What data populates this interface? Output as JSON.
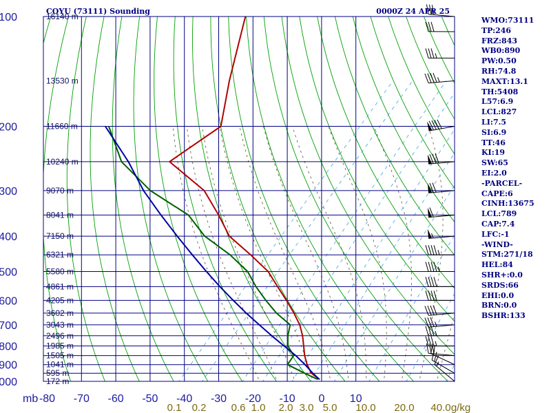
{
  "header": {
    "title": "COYU (73111) Sounding",
    "valid_time": "0000Z 24 APR 25"
  },
  "chart_data": {
    "type": "line",
    "title": "COYU (73111) Sounding",
    "xlabel": "",
    "ylabel": "mb",
    "x_unit_label": "mb",
    "pressure_axis_labels": [
      "100",
      "200",
      "300",
      "400",
      "500",
      "600",
      "700",
      "800",
      "900",
      "1000"
    ],
    "pressure_levels": [
      100,
      200,
      250,
      300,
      350,
      400,
      450,
      500,
      550,
      600,
      650,
      700,
      750,
      800,
      850,
      900,
      950,
      1000
    ],
    "temperature_ticks": [
      "-80",
      "-70",
      "-60",
      "-50",
      "-40",
      "-30",
      "-20",
      "-10",
      "0",
      "10"
    ],
    "mixing_ratio_labels": [
      "0.1",
      "0.2",
      "0.6",
      "1.0",
      "2.0",
      "3.0",
      "5.0",
      "10.0",
      "20.0",
      "40.0",
      "g/kg"
    ],
    "height_labels": [
      {
        "p": 100,
        "label": "16140 m"
      },
      {
        "p": 150,
        "label": "13530 m"
      },
      {
        "p": 200,
        "label": "11660 m"
      },
      {
        "p": 250,
        "label": "10240 m"
      },
      {
        "p": 300,
        "label": "9070 m"
      },
      {
        "p": 350,
        "label": "8041 m"
      },
      {
        "p": 400,
        "label": "7150 m"
      },
      {
        "p": 450,
        "label": "6321 m"
      },
      {
        "p": 500,
        "label": "5580 m"
      },
      {
        "p": 550,
        "label": "4861 m"
      },
      {
        "p": 600,
        "label": "4205 m"
      },
      {
        "p": 650,
        "label": "3602 m"
      },
      {
        "p": 700,
        "label": "3043 m"
      },
      {
        "p": 750,
        "label": "2496 m"
      },
      {
        "p": 800,
        "label": "1985 m"
      },
      {
        "p": 850,
        "label": "1505 m"
      },
      {
        "p": 900,
        "label": "1041 m"
      },
      {
        "p": 950,
        "label": "595 m"
      },
      {
        "p": 1000,
        "label": "172 m"
      }
    ],
    "series": [
      {
        "key": "temperature",
        "color": "#b00000",
        "points": [
          [
            988,
            -1.1
          ],
          [
            950,
            -5.1
          ],
          [
            900,
            -8.6
          ],
          [
            850,
            -11.7
          ],
          [
            800,
            -14.5
          ],
          [
            750,
            -17.5
          ],
          [
            700,
            -21.2
          ],
          [
            650,
            -26.0
          ],
          [
            600,
            -31.5
          ],
          [
            550,
            -37.7
          ],
          [
            500,
            -44.4
          ],
          [
            450,
            -53.9
          ],
          [
            400,
            -65.0
          ],
          [
            350,
            -73.7
          ],
          [
            300,
            -84.3
          ],
          [
            250,
            -102.0
          ],
          [
            200,
            -96.3
          ],
          [
            150,
            -105.8
          ],
          [
            100,
            -118.0
          ]
        ]
      },
      {
        "key": "dewpoint",
        "color": "#006000",
        "points": [
          [
            988,
            -1.6
          ],
          [
            950,
            -7.1
          ],
          [
            900,
            -14.3
          ],
          [
            850,
            -14.9
          ],
          [
            800,
            -19.1
          ],
          [
            750,
            -21.8
          ],
          [
            700,
            -24.0
          ],
          [
            650,
            -31.1
          ],
          [
            600,
            -37.5
          ],
          [
            550,
            -44.0
          ],
          [
            500,
            -50.4
          ],
          [
            450,
            -59.9
          ],
          [
            400,
            -72.2
          ],
          [
            350,
            -82.5
          ],
          [
            300,
            -100.0
          ],
          [
            250,
            -116.0
          ],
          [
            200,
            -129.0
          ]
        ]
      },
      {
        "key": "parcel",
        "color": "#0000a0",
        "points": [
          [
            988,
            -1.1
          ],
          [
            950,
            -4.7
          ],
          [
            900,
            -9.2
          ],
          [
            850,
            -14.3
          ],
          [
            800,
            -20.2
          ],
          [
            750,
            -26.5
          ],
          [
            700,
            -33.0
          ],
          [
            650,
            -39.9
          ],
          [
            600,
            -47.0
          ],
          [
            550,
            -54.5
          ],
          [
            500,
            -62.4
          ],
          [
            450,
            -70.9
          ],
          [
            400,
            -80.2
          ],
          [
            350,
            -90.5
          ],
          [
            300,
            -102.0
          ],
          [
            250,
            -114.0
          ],
          [
            200,
            -130.0
          ]
        ]
      }
    ],
    "grid": true,
    "legend": "none"
  },
  "wind_barbs": [
    {
      "p": 1000,
      "dir": 310,
      "spd": 15
    },
    {
      "p": 950,
      "dir": 300,
      "spd": 20
    },
    {
      "p": 900,
      "dir": 295,
      "spd": 20
    },
    {
      "p": 850,
      "dir": 275,
      "spd": 30
    },
    {
      "p": 800,
      "dir": 270,
      "spd": 35
    },
    {
      "p": 750,
      "dir": 270,
      "spd": 35
    },
    {
      "p": 700,
      "dir": 265,
      "spd": 35
    },
    {
      "p": 650,
      "dir": 265,
      "spd": 40
    },
    {
      "p": 600,
      "dir": 270,
      "spd": 40
    },
    {
      "p": 550,
      "dir": 270,
      "spd": 40
    },
    {
      "p": 500,
      "dir": 270,
      "spd": 45
    },
    {
      "p": 450,
      "dir": 270,
      "spd": 45
    },
    {
      "p": 400,
      "dir": 265,
      "spd": 55
    },
    {
      "p": 350,
      "dir": 265,
      "spd": 60
    },
    {
      "p": 300,
      "dir": 265,
      "spd": 70
    },
    {
      "p": 250,
      "dir": 265,
      "spd": 80
    },
    {
      "p": 200,
      "dir": 260,
      "spd": 90
    },
    {
      "p": 150,
      "dir": 265,
      "spd": 45
    },
    {
      "p": 130,
      "dir": 270,
      "spd": 35
    },
    {
      "p": 110,
      "dir": 270,
      "spd": 30
    },
    {
      "p": 100,
      "dir": 275,
      "spd": 30
    }
  ],
  "stats": [
    "WMO:73111",
    "TP:246",
    "FRZ:843",
    "WB0:890",
    "PW:0.50",
    "RH:74.8",
    "MAXT:13.1",
    "TH:5408",
    "L57:6.9",
    "LCL:827",
    "LI:7.5",
    "SI:6.9",
    "TT:46",
    "KI:19",
    "SW:65",
    "EI:2.0",
    "-PARCEL-",
    "CAPE:6",
    "CINH:13675",
    "LCL:789",
    "CAP:7.4",
    "LFC:-1",
    "-WIND-",
    "STM:271/18",
    "HEL:84",
    "SHR+:0.0",
    "SRDS:66",
    "EHI:0.0",
    "BRN:0.0",
    "BSHR:133"
  ],
  "colors": {
    "frame": "#000080",
    "isobar": "#000080",
    "isotherm": "#000080",
    "dry_adiabat": "#00a000",
    "moist_adiabat": "#5a4a30",
    "mixing_ratio": "#3aa0e0",
    "temperature": "#b00000",
    "dewpoint": "#006000",
    "parcel": "#0000a0",
    "barb": "#000000"
  }
}
